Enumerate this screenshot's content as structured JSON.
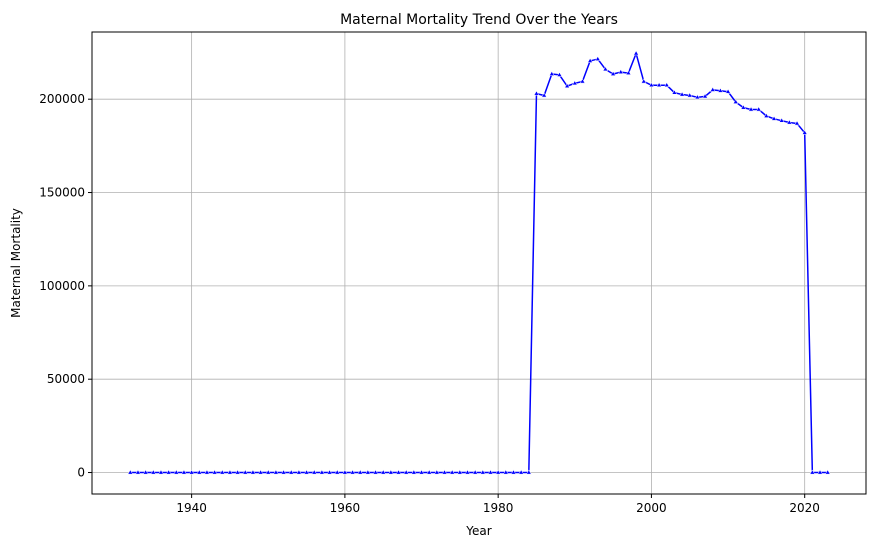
{
  "chart_data": {
    "type": "line",
    "title": "Maternal Mortality Trend Over the Years",
    "xlabel": "Year",
    "ylabel": "Maternal Mortality",
    "xlim": [
      1927,
      2028
    ],
    "ylim": [
      -11500,
      236000
    ],
    "xticks": [
      1940,
      1960,
      1980,
      2000,
      2020
    ],
    "yticks": [
      0,
      50000,
      100000,
      150000,
      200000
    ],
    "grid": true,
    "line_color": "#0000ff",
    "marker_color": "#0000ff",
    "series": [
      {
        "x": [
          1932,
          1933,
          1934,
          1935,
          1936,
          1937,
          1938,
          1939,
          1940,
          1941,
          1942,
          1943,
          1944,
          1945,
          1946,
          1947,
          1948,
          1949,
          1950,
          1951,
          1952,
          1953,
          1954,
          1955,
          1956,
          1957,
          1958,
          1959,
          1960,
          1961,
          1962,
          1963,
          1964,
          1965,
          1966,
          1967,
          1968,
          1969,
          1970,
          1971,
          1972,
          1973,
          1974,
          1975,
          1976,
          1977,
          1978,
          1979,
          1980,
          1981,
          1982,
          1983,
          1984,
          1985,
          1986,
          1987,
          1988,
          1989,
          1990,
          1991,
          1992,
          1993,
          1994,
          1995,
          1996,
          1997,
          1998,
          1999,
          2000,
          2001,
          2002,
          2003,
          2004,
          2005,
          2006,
          2007,
          2008,
          2009,
          2010,
          2011,
          2012,
          2013,
          2014,
          2015,
          2016,
          2017,
          2018,
          2019,
          2020,
          2021,
          2022,
          2023
        ],
        "values": [
          0,
          0,
          0,
          0,
          0,
          0,
          0,
          0,
          0,
          0,
          0,
          0,
          0,
          0,
          0,
          0,
          0,
          0,
          0,
          0,
          0,
          0,
          0,
          0,
          0,
          0,
          0,
          0,
          0,
          0,
          0,
          0,
          0,
          0,
          0,
          0,
          0,
          0,
          0,
          0,
          0,
          0,
          0,
          0,
          0,
          0,
          0,
          0,
          0,
          0,
          0,
          0,
          0,
          203000,
          202000,
          213500,
          213000,
          207000,
          208500,
          209500,
          220500,
          221500,
          216000,
          213500,
          214500,
          214000,
          224500,
          209500,
          207500,
          207500,
          207500,
          203500,
          202500,
          202000,
          201000,
          201500,
          205000,
          204500,
          204000,
          198500,
          195500,
          194500,
          194500,
          191000,
          189500,
          188500,
          187500,
          187000,
          182000,
          0,
          0,
          0
        ]
      }
    ]
  }
}
